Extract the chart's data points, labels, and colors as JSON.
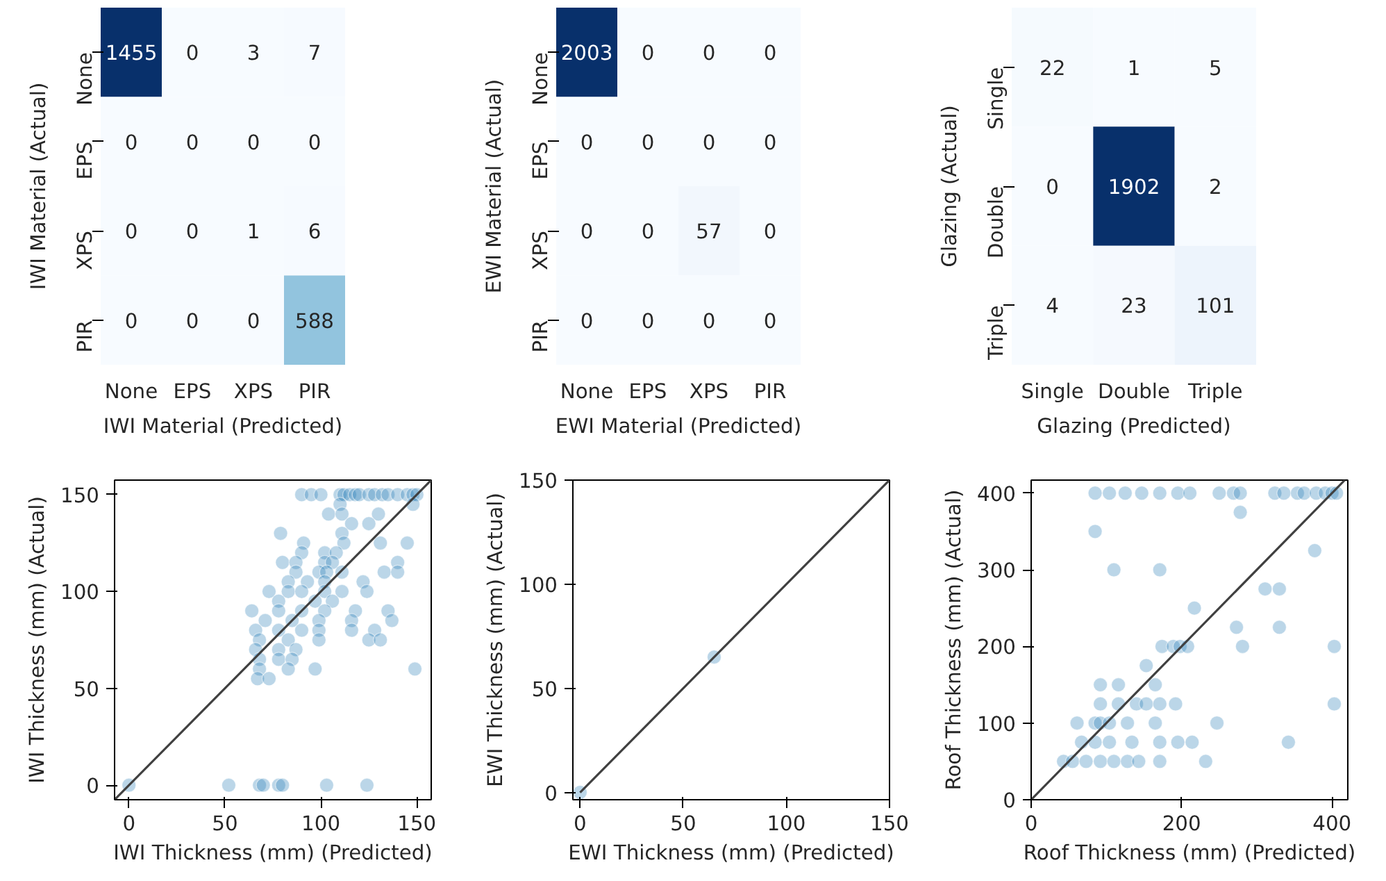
{
  "chart_data": [
    {
      "type": "heatmap",
      "xlabel": "IWI Material (Predicted)",
      "ylabel": "IWI Material (Actual)",
      "categories": [
        "None",
        "EPS",
        "XPS",
        "PIR"
      ],
      "y_categories": [
        "None",
        "EPS",
        "XPS",
        "PIR"
      ],
      "cells": [
        [
          1455,
          0,
          3,
          7
        ],
        [
          0,
          0,
          0,
          0
        ],
        [
          0,
          0,
          1,
          6
        ],
        [
          0,
          0,
          0,
          588
        ]
      ],
      "data_labels": true
    },
    {
      "type": "heatmap",
      "xlabel": "EWI Material (Predicted)",
      "ylabel": "EWI Material (Actual)",
      "categories": [
        "None",
        "EPS",
        "XPS",
        "PIR"
      ],
      "y_categories": [
        "None",
        "EPS",
        "XPS",
        "PIR"
      ],
      "cells": [
        [
          2003,
          0,
          0,
          0
        ],
        [
          0,
          0,
          0,
          0
        ],
        [
          0,
          0,
          57,
          0
        ],
        [
          0,
          0,
          0,
          0
        ]
      ],
      "data_labels": true
    },
    {
      "type": "heatmap",
      "xlabel": "Glazing (Predicted)",
      "ylabel": "Glazing (Actual)",
      "categories": [
        "Single",
        "Double",
        "Triple"
      ],
      "y_categories": [
        "Single",
        "Double",
        "Triple"
      ],
      "cells": [
        [
          22,
          1,
          5
        ],
        [
          0,
          1902,
          2
        ],
        [
          4,
          23,
          101
        ]
      ],
      "data_labels": true
    },
    {
      "type": "scatter",
      "xlabel": "IWI Thickness (mm) (Predicted)",
      "ylabel": "IWI Thickness (mm) (Actual)",
      "xlim": [
        -7.5,
        157.5
      ],
      "ylim": [
        -7.5,
        157.5
      ],
      "xticks": [
        0,
        50,
        100,
        150
      ],
      "yticks": [
        0,
        50,
        100,
        150
      ],
      "series": [
        {
          "type": "scatter",
          "marker": "circle",
          "color": "#1f77b4",
          "x": [
            0,
            52,
            68,
            70,
            78,
            80,
            103,
            124,
            90,
            95,
            100,
            110,
            112,
            115,
            118,
            120,
            125,
            128,
            132,
            135,
            140,
            145,
            148,
            150,
            110,
            148,
            104,
            111,
            130,
            116,
            125,
            79,
            111,
            91,
            112,
            131,
            145,
            90,
            102,
            108,
            80,
            87,
            102,
            106,
            140,
            87,
            99,
            103,
            111,
            133,
            140,
            83,
            93,
            102,
            122,
            73,
            83,
            90,
            102,
            111,
            124,
            78,
            97,
            106,
            64,
            78,
            90,
            102,
            118,
            135,
            71,
            85,
            99,
            116,
            137,
            66,
            78,
            90,
            99,
            116,
            128,
            68,
            83,
            99,
            125,
            131,
            66,
            78,
            87,
            68,
            78,
            85,
            68,
            83,
            97,
            149,
            67,
            73
          ],
          "values": [
            0,
            0,
            0,
            0,
            0,
            0,
            0,
            0,
            150,
            150,
            150,
            150,
            150,
            150,
            150,
            150,
            150,
            150,
            150,
            150,
            150,
            150,
            150,
            150,
            145,
            145,
            140,
            140,
            140,
            135,
            135,
            130,
            130,
            125,
            125,
            125,
            125,
            120,
            120,
            120,
            115,
            115,
            115,
            115,
            115,
            110,
            110,
            110,
            110,
            110,
            110,
            105,
            105,
            105,
            105,
            100,
            100,
            100,
            100,
            100,
            100,
            95,
            95,
            95,
            90,
            90,
            90,
            90,
            90,
            90,
            85,
            85,
            85,
            85,
            85,
            80,
            80,
            80,
            80,
            80,
            80,
            75,
            75,
            75,
            75,
            75,
            70,
            70,
            70,
            65,
            65,
            65,
            60,
            60,
            60,
            60,
            55,
            55
          ]
        },
        {
          "type": "line",
          "color": "#404040",
          "x": [
            -7.5,
            157.5
          ],
          "values": [
            -7.5,
            157.5
          ]
        }
      ]
    },
    {
      "type": "scatter",
      "xlabel": "EWI Thickness (mm) (Predicted)",
      "ylabel": "EWI Thickness (mm) (Actual)",
      "xlim": [
        -3.5,
        150
      ],
      "ylim": [
        -3.5,
        150
      ],
      "xticks": [
        0,
        50,
        100,
        150
      ],
      "yticks": [
        0,
        50,
        100,
        150
      ],
      "series": [
        {
          "type": "scatter",
          "marker": "circle",
          "color": "#1f77b4",
          "x": [
            0,
            65
          ],
          "values": [
            0,
            65
          ]
        },
        {
          "type": "line",
          "color": "#404040",
          "x": [
            0,
            150
          ],
          "values": [
            0,
            150
          ]
        }
      ]
    },
    {
      "type": "scatter",
      "xlabel": "Roof Thickness (mm) (Predicted)",
      "ylabel": "Roof Thickness (mm) (Actual)",
      "xlim": [
        0,
        421
      ],
      "ylim": [
        0,
        417
      ],
      "xticks": [
        0,
        200,
        400
      ],
      "yticks": [
        0,
        100,
        200,
        300,
        400
      ],
      "series": [
        {
          "type": "scatter",
          "marker": "circle",
          "color": "#1f77b4",
          "x": [
            85,
            104,
            125,
            147,
            171,
            195,
            211,
            250,
            269,
            278,
            324,
            336,
            354,
            363,
            379,
            391,
            400,
            406,
            278,
            85,
            377,
            110,
            171,
            311,
            330,
            217,
            273,
            330,
            174,
            189,
            198,
            208,
            281,
            403,
            153,
            92,
            116,
            165,
            92,
            116,
            140,
            153,
            171,
            192,
            403,
            61,
            85,
            92,
            104,
            128,
            165,
            247,
            67,
            85,
            104,
            134,
            171,
            195,
            214,
            342,
            43,
            55,
            73,
            92,
            110,
            128,
            143,
            171,
            232
          ],
          "values": [
            400,
            400,
            400,
            400,
            400,
            400,
            400,
            400,
            400,
            400,
            400,
            400,
            400,
            400,
            400,
            400,
            400,
            400,
            375,
            350,
            325,
            300,
            300,
            275,
            275,
            250,
            225,
            225,
            200,
            200,
            200,
            200,
            200,
            200,
            175,
            150,
            150,
            150,
            125,
            125,
            125,
            125,
            125,
            125,
            125,
            100,
            100,
            100,
            100,
            100,
            100,
            100,
            75,
            75,
            75,
            75,
            75,
            75,
            75,
            75,
            50,
            50,
            50,
            50,
            50,
            50,
            50,
            50,
            50
          ]
        },
        {
          "type": "line",
          "color": "#404040",
          "x": [
            0,
            417
          ],
          "values": [
            0,
            417
          ]
        }
      ]
    }
  ]
}
